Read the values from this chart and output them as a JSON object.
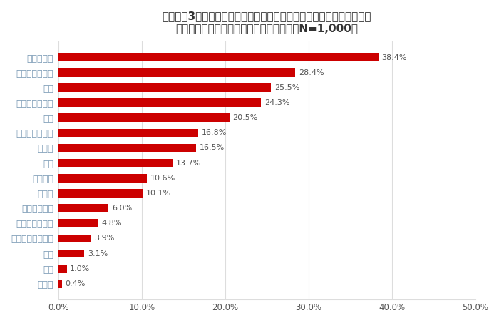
{
  "title_line1": "》グラフ3》＜今年の冬家で過ごす時間が増えていると感じている人＞",
  "title_line1_raw": "【グラフ3】＜今年の冬家で過ごす時間が増えていると感じている人＞",
  "title_line2_raw": "家でどんな過ごし方をするか（複数回答、N=1,000）",
  "categories": [
    "テレビ視聴",
    "のんびり過ごす",
    "家事",
    "インターネット",
    "育児",
    "動画・映画鑑賞",
    "スマホ",
    "読書",
    "音楽鑑賞",
    "ゲーム",
    "ペットの世話",
    "上記以外の趣味",
    "勉強（語学など）",
    "仕事",
    "介護",
    "その他"
  ],
  "values": [
    38.4,
    28.4,
    25.5,
    24.3,
    20.5,
    16.8,
    16.5,
    13.7,
    10.6,
    10.1,
    6.0,
    4.8,
    3.9,
    3.1,
    1.0,
    0.4
  ],
  "bar_color": "#cc0000",
  "label_color": "#7a9ab5",
  "value_label_color": "#555555",
  "title_color": "#333333",
  "background_color": "#ffffff",
  "grid_color": "#dddddd",
  "xlim": [
    0,
    50
  ],
  "xticks": [
    0,
    10,
    20,
    30,
    40,
    50
  ],
  "xtick_labels": [
    "0.0%",
    "10.0%",
    "20.0%",
    "30.0%",
    "40.0%",
    "50.0%"
  ],
  "bar_height": 0.55,
  "figsize": [
    7.0,
    4.53
  ],
  "dpi": 100
}
